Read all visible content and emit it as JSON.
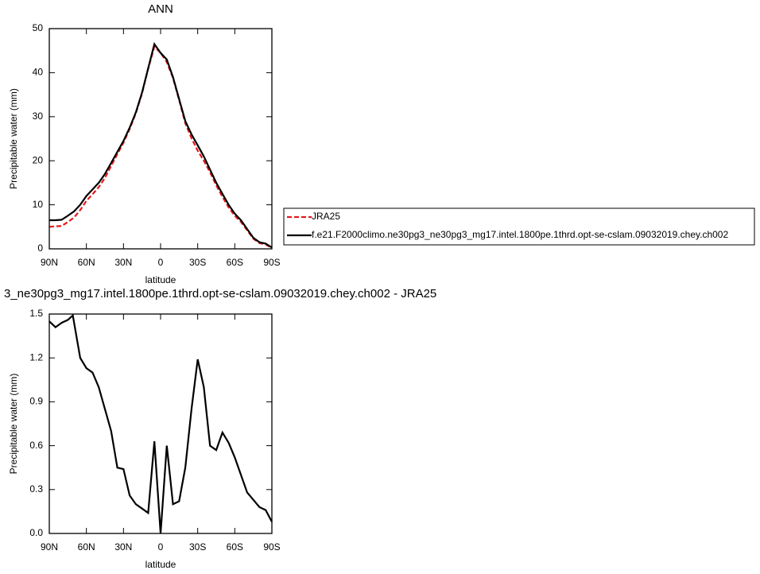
{
  "chart_data": [
    {
      "type": "line",
      "title": "ANN",
      "xlabel": "latitude",
      "ylabel": "Precipitable water (mm)",
      "x": [
        90,
        85,
        80,
        75,
        70,
        65,
        60,
        55,
        50,
        45,
        40,
        35,
        30,
        25,
        20,
        15,
        10,
        5,
        0,
        -5,
        -10,
        -15,
        -20,
        -25,
        -30,
        -35,
        -40,
        -45,
        -50,
        -55,
        -60,
        -65,
        -70,
        -75,
        -80,
        -85,
        -90
      ],
      "series": [
        {
          "name": "JRA25",
          "color": "#e8191b",
          "dash": true,
          "values": [
            5.0,
            5.1,
            5.2,
            6.1,
            7.1,
            8.8,
            10.9,
            12.4,
            14,
            16.1,
            18.8,
            21.5,
            24.1,
            27.2,
            30.8,
            35.3,
            40.9,
            45.9,
            44.5,
            42.4,
            38.8,
            33.8,
            28.5,
            25.1,
            22.3,
            20,
            17.4,
            14.4,
            11.8,
            9.4,
            7.5,
            6.1,
            4.2,
            2.3,
            1.3,
            1.0,
            0.2
          ]
        },
        {
          "name": "f.e21.F2000climo.ne30pg3_ne30pg3_mg17.intel.1800pe.1thrd.opt-se-cslam.09032019.chey.ch002",
          "color": "#000000",
          "dash": false,
          "values": [
            6.5,
            6.5,
            6.6,
            7.5,
            8.5,
            10,
            12,
            13.5,
            15,
            17,
            19.5,
            22,
            24.5,
            27.5,
            31,
            35.5,
            41,
            46.5,
            44.5,
            43,
            39,
            34,
            29,
            26,
            23.5,
            21,
            18,
            15,
            12.5,
            10,
            8,
            6.5,
            4.5,
            2.5,
            1.5,
            1.2,
            0.3
          ]
        }
      ],
      "xlim": [
        90,
        -90
      ],
      "xticks": [
        {
          "value": 90,
          "label": "90N"
        },
        {
          "value": 60,
          "label": "60N"
        },
        {
          "value": 30,
          "label": "30N"
        },
        0,
        {
          "value": -30,
          "label": "30S"
        },
        {
          "value": -60,
          "label": "60S"
        },
        {
          "value": -90,
          "label": "90S"
        }
      ],
      "ylim": [
        0,
        50
      ],
      "yticks": [
        0,
        10,
        20,
        30,
        40,
        50
      ]
    },
    {
      "type": "line",
      "title": "3_ne30pg3_mg17.intel.1800pe.1thrd.opt-se-cslam.09032019.chey.ch002 - JRA25",
      "xlabel": "latitude",
      "ylabel": "Precipitable water (mm)",
      "x": [
        90,
        85,
        80,
        75,
        71,
        65,
        60,
        55,
        50,
        45,
        40,
        35,
        30,
        25,
        20,
        15,
        10,
        5,
        0,
        -5,
        -10,
        -15,
        -20,
        -25,
        -30,
        -35,
        -40,
        -45,
        -50,
        -55,
        -60,
        -65,
        -70,
        -75,
        -80,
        -85,
        -90
      ],
      "values": [
        1.45,
        1.41,
        1.44,
        1.46,
        1.49,
        1.2,
        1.13,
        1.1,
        1.0,
        0.85,
        0.7,
        0.45,
        0.44,
        0.26,
        0.2,
        0.17,
        0.14,
        0.63,
        0.0,
        0.6,
        0.2,
        0.22,
        0.45,
        0.85,
        1.19,
        1.0,
        0.6,
        0.57,
        0.69,
        0.62,
        0.52,
        0.4,
        0.28,
        0.23,
        0.18,
        0.16,
        0.08
      ],
      "color": "#000000",
      "xlim": [
        90,
        -90
      ],
      "xticks": [
        {
          "value": 90,
          "label": "90N"
        },
        {
          "value": 60,
          "label": "60N"
        },
        {
          "value": 30,
          "label": "30N"
        },
        0,
        {
          "value": -30,
          "label": "30S"
        },
        {
          "value": -60,
          "label": "60S"
        },
        {
          "value": -90,
          "label": "90S"
        }
      ],
      "ylim": [
        0,
        1.5
      ],
      "yticks": [
        {
          "value": 0,
          "label": "0.0"
        },
        0.3,
        0.6,
        0.9,
        1.2,
        1.5
      ]
    }
  ]
}
